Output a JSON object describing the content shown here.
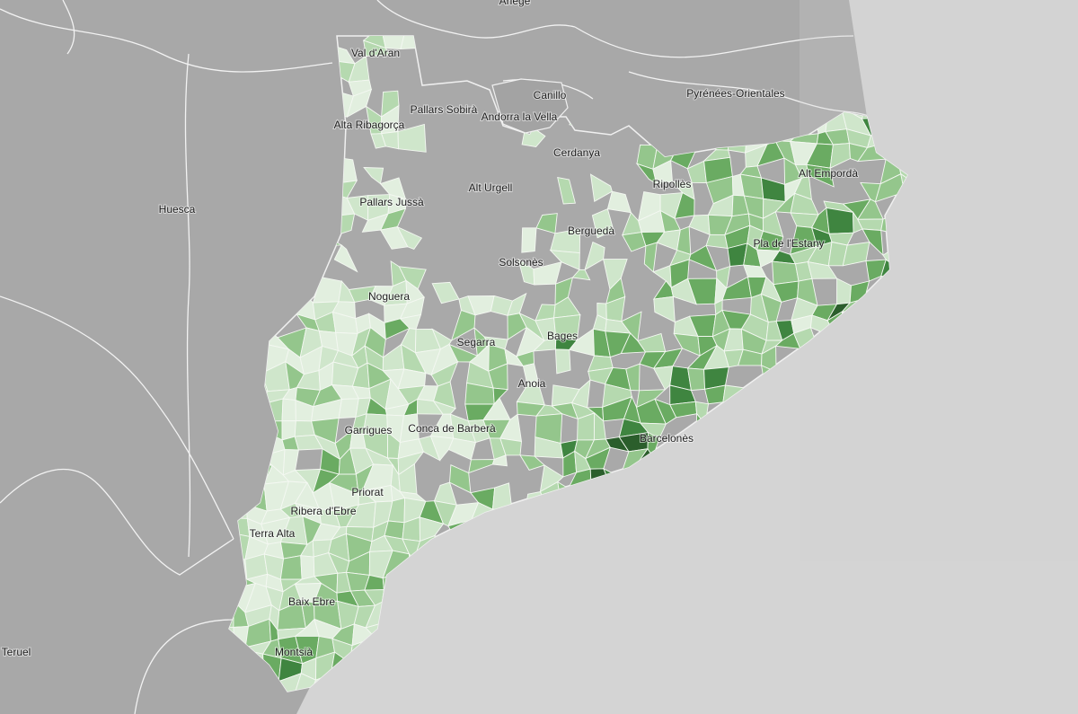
{
  "labels": [
    "Ariège",
    "Val d'Aran",
    "Pallars Sobirà",
    "Canillo",
    "Andorra la Vella",
    "Pyrénées-Orientales",
    "Alta Ribagorça",
    "Cerdanya",
    "Alt Urgell",
    "Pallars Jussà",
    "Huesca",
    "Ripollès",
    "Berguedà",
    "Solsonès",
    "Noguera",
    "Segarra",
    "Anoia",
    "Garrigues",
    "Conca de Barberà",
    "Priorat",
    "Ribera d'Ebre",
    "Terra Alta",
    "Baix Ebre",
    "Montsià",
    "Teruel",
    "Barcelonès",
    "Bages",
    "Pla de l'Estany",
    "Alt Empordà"
  ]
}
